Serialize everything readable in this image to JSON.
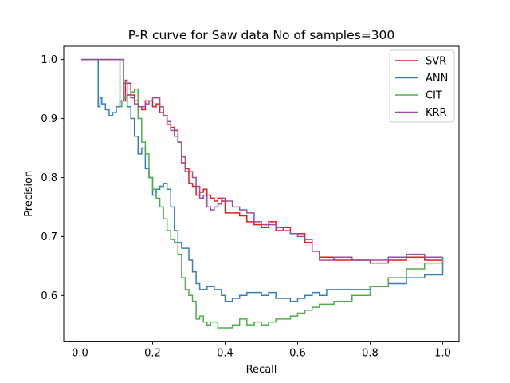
{
  "chart_data": {
    "type": "line",
    "title": "P-R curve for Saw data No of samples=300",
    "xlabel": "Recall",
    "ylabel": "Precision",
    "xlim": [
      -0.045,
      1.045
    ],
    "ylim": [
      0.5225,
      1.0225
    ],
    "xticks": [
      0.0,
      0.2,
      0.4,
      0.6,
      0.8,
      1.0
    ],
    "xtick_labels": [
      "0.0",
      "0.2",
      "0.4",
      "0.6",
      "0.8",
      "1.0"
    ],
    "yticks": [
      0.6,
      0.7,
      0.8,
      0.9,
      1.0
    ],
    "ytick_labels": [
      "0.6",
      "0.7",
      "0.8",
      "0.9",
      "1.0"
    ],
    "grid": false,
    "legend_position": "upper right",
    "step": true,
    "series": [
      {
        "name": "SVR",
        "color": "#e41a1c",
        "x": [
          0.0033,
          0.12,
          0.125,
          0.13,
          0.14,
          0.15,
          0.16,
          0.17,
          0.18,
          0.19,
          0.2,
          0.21,
          0.22,
          0.23,
          0.24,
          0.25,
          0.26,
          0.27,
          0.28,
          0.29,
          0.3,
          0.31,
          0.32,
          0.33,
          0.34,
          0.35,
          0.36,
          0.37,
          0.38,
          0.39,
          0.4,
          0.41,
          0.42,
          0.44,
          0.46,
          0.48,
          0.5,
          0.52,
          0.54,
          0.56,
          0.58,
          0.6,
          0.62,
          0.64,
          0.66,
          0.7,
          0.75,
          0.8,
          0.85,
          0.9,
          0.95,
          1.0
        ],
        "y": [
          1.0,
          0.93,
          0.965,
          0.96,
          0.94,
          0.93,
          0.92,
          0.915,
          0.93,
          0.93,
          0.92,
          0.925,
          0.91,
          0.905,
          0.89,
          0.885,
          0.88,
          0.86,
          0.825,
          0.815,
          0.79,
          0.785,
          0.77,
          0.775,
          0.78,
          0.77,
          0.765,
          0.76,
          0.765,
          0.76,
          0.74,
          0.74,
          0.74,
          0.735,
          0.725,
          0.72,
          0.715,
          0.725,
          0.71,
          0.715,
          0.705,
          0.705,
          0.69,
          0.675,
          0.665,
          0.66,
          0.66,
          0.655,
          0.66,
          0.665,
          0.66,
          0.665
        ]
      },
      {
        "name": "ANN",
        "color": "#377eb8",
        "x": [
          0.0033,
          0.05,
          0.055,
          0.06,
          0.07,
          0.08,
          0.09,
          0.1,
          0.11,
          0.12,
          0.13,
          0.14,
          0.15,
          0.16,
          0.17,
          0.18,
          0.19,
          0.2,
          0.21,
          0.22,
          0.23,
          0.24,
          0.25,
          0.26,
          0.27,
          0.28,
          0.29,
          0.3,
          0.31,
          0.32,
          0.33,
          0.35,
          0.37,
          0.39,
          0.4,
          0.42,
          0.44,
          0.46,
          0.48,
          0.5,
          0.52,
          0.54,
          0.56,
          0.58,
          0.6,
          0.62,
          0.64,
          0.66,
          0.68,
          0.7,
          0.75,
          0.8,
          0.85,
          0.9,
          0.95,
          1.0
        ],
        "y": [
          1.0,
          0.92,
          0.935,
          0.925,
          0.915,
          0.905,
          0.91,
          0.92,
          0.93,
          0.96,
          0.92,
          0.9,
          0.87,
          0.84,
          0.85,
          0.815,
          0.8,
          0.77,
          0.78,
          0.785,
          0.79,
          0.78,
          0.75,
          0.71,
          0.69,
          0.68,
          0.68,
          0.66,
          0.64,
          0.62,
          0.61,
          0.615,
          0.61,
          0.6,
          0.59,
          0.595,
          0.6,
          0.605,
          0.605,
          0.6,
          0.605,
          0.595,
          0.595,
          0.59,
          0.595,
          0.6,
          0.605,
          0.6,
          0.61,
          0.61,
          0.61,
          0.615,
          0.62,
          0.63,
          0.635,
          0.665
        ]
      },
      {
        "name": "CIT",
        "color": "#4daf4a",
        "x": [
          0.0033,
          0.11,
          0.115,
          0.12,
          0.13,
          0.14,
          0.15,
          0.16,
          0.17,
          0.18,
          0.19,
          0.2,
          0.21,
          0.22,
          0.23,
          0.24,
          0.25,
          0.26,
          0.27,
          0.28,
          0.29,
          0.3,
          0.31,
          0.32,
          0.33,
          0.34,
          0.35,
          0.36,
          0.38,
          0.4,
          0.42,
          0.44,
          0.46,
          0.48,
          0.5,
          0.52,
          0.54,
          0.56,
          0.58,
          0.6,
          0.62,
          0.64,
          0.66,
          0.7,
          0.75,
          0.8,
          0.85,
          0.9,
          0.95,
          1.0
        ],
        "y": [
          1.0,
          0.92,
          0.93,
          0.935,
          0.94,
          0.945,
          0.95,
          0.9,
          0.86,
          0.84,
          0.8,
          0.78,
          0.765,
          0.75,
          0.73,
          0.71,
          0.695,
          0.69,
          0.67,
          0.63,
          0.61,
          0.6,
          0.59,
          0.56,
          0.565,
          0.555,
          0.55,
          0.555,
          0.545,
          0.545,
          0.55,
          0.56,
          0.55,
          0.555,
          0.55,
          0.555,
          0.56,
          0.56,
          0.565,
          0.57,
          0.575,
          0.58,
          0.585,
          0.59,
          0.6,
          0.615,
          0.63,
          0.645,
          0.655,
          0.665
        ]
      },
      {
        "name": "KRR",
        "color": "#984ea3",
        "x": [
          0.0033,
          0.12,
          0.13,
          0.14,
          0.15,
          0.16,
          0.17,
          0.18,
          0.19,
          0.2,
          0.21,
          0.22,
          0.23,
          0.24,
          0.25,
          0.26,
          0.27,
          0.28,
          0.29,
          0.3,
          0.31,
          0.32,
          0.33,
          0.34,
          0.35,
          0.36,
          0.37,
          0.38,
          0.39,
          0.4,
          0.41,
          0.42,
          0.44,
          0.46,
          0.48,
          0.5,
          0.52,
          0.54,
          0.56,
          0.58,
          0.6,
          0.62,
          0.64,
          0.66,
          0.7,
          0.75,
          0.8,
          0.85,
          0.9,
          0.95,
          1.0
        ],
        "y": [
          1.0,
          0.93,
          0.94,
          0.935,
          0.925,
          0.92,
          0.92,
          0.925,
          0.93,
          0.935,
          0.935,
          0.92,
          0.905,
          0.895,
          0.88,
          0.87,
          0.86,
          0.835,
          0.81,
          0.81,
          0.8,
          0.785,
          0.765,
          0.77,
          0.75,
          0.745,
          0.75,
          0.755,
          0.765,
          0.76,
          0.76,
          0.75,
          0.745,
          0.74,
          0.725,
          0.72,
          0.72,
          0.715,
          0.71,
          0.705,
          0.7,
          0.695,
          0.675,
          0.66,
          0.665,
          0.66,
          0.66,
          0.665,
          0.67,
          0.665,
          0.665
        ]
      }
    ]
  }
}
